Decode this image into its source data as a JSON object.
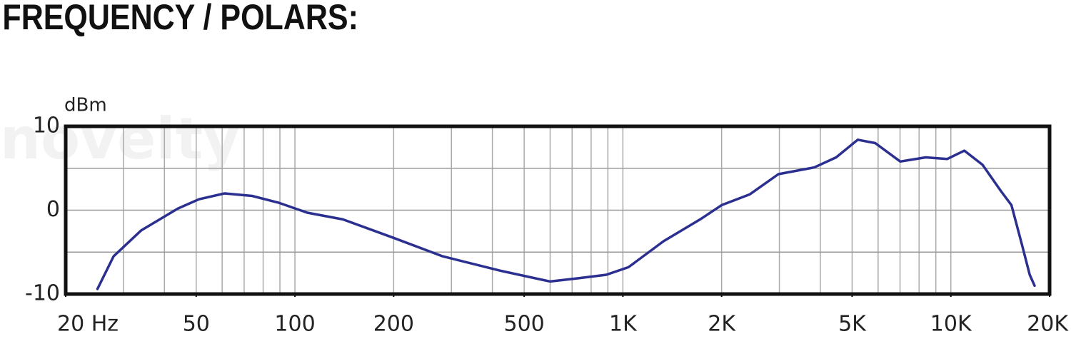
{
  "chart_data": {
    "type": "line",
    "title": "FREQUENCY / POLARS:",
    "watermark": "novelty",
    "y_label": "dBm",
    "x": [
      25,
      28,
      34,
      44,
      51,
      61,
      74,
      89,
      109,
      140,
      200,
      282,
      421,
      600,
      735,
      890,
      1040,
      1330,
      1720,
      2000,
      2440,
      2980,
      3830,
      4470,
      5200,
      5880,
      7010,
      8380,
      9740,
      11000,
      12500,
      14200,
      15300,
      16500,
      17400,
      18000
    ],
    "series": [
      {
        "color": "#2b2f8f",
        "values": [
          -9.4,
          -5.5,
          -2.4,
          0.2,
          1.3,
          2.0,
          1.7,
          0.9,
          -0.3,
          -1.1,
          -3.3,
          -5.5,
          -7.2,
          -8.5,
          -8.1,
          -7.7,
          -6.8,
          -3.7,
          -1.1,
          0.6,
          1.9,
          4.3,
          5.1,
          6.3,
          8.4,
          8.0,
          5.8,
          6.3,
          6.1,
          7.1,
          5.4,
          2.3,
          0.6,
          -4.2,
          -7.7,
          -9.0
        ]
      }
    ],
    "xscale": "log",
    "xlim": [
      20,
      20000
    ],
    "xticks": [
      {
        "value": 20,
        "label": "20 Hz"
      },
      50,
      100,
      200,
      500,
      {
        "value": 1000,
        "label": "1K"
      },
      {
        "value": 2000,
        "label": "2K"
      },
      {
        "value": 5000,
        "label": "5K"
      },
      {
        "value": 10000,
        "label": "10K"
      },
      {
        "value": 20000,
        "label": "20K"
      }
    ],
    "xgrid": [
      30,
      40,
      50,
      60,
      70,
      80,
      90,
      100,
      200,
      300,
      400,
      500,
      600,
      700,
      800,
      900,
      1000,
      2000,
      3000,
      4000,
      5000,
      6000,
      7000,
      8000,
      9000,
      10000
    ],
    "ylim": [
      -10,
      10
    ],
    "yticks": [
      -10,
      0,
      10
    ],
    "ygrid": [
      -5,
      0,
      5
    ]
  }
}
